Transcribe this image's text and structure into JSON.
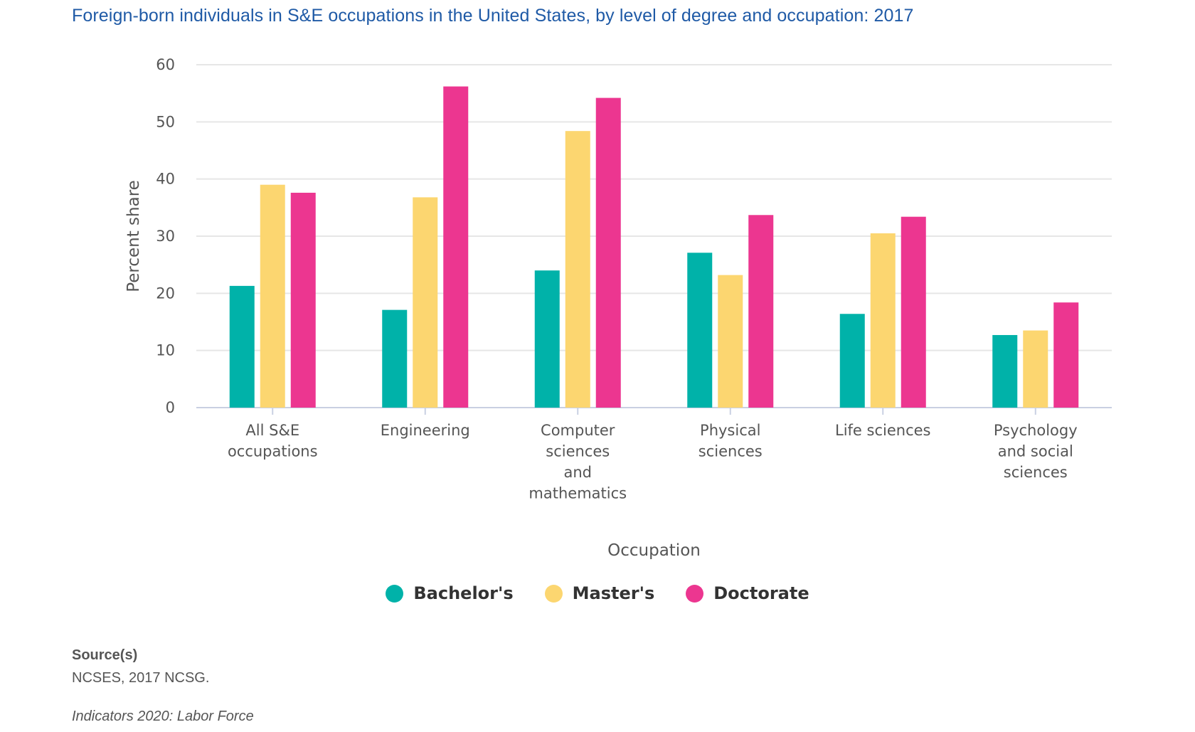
{
  "title": "Foreign-born individuals in S&E occupations in the United States, by level of degree and occupation: 2017",
  "chart_data": {
    "type": "bar",
    "title": "Foreign-born individuals in S&E occupations in the United States, by level of degree and occupation: 2017",
    "xlabel": "Occupation",
    "ylabel": "Percent share",
    "ylim": [
      0,
      60
    ],
    "yticks": [
      0,
      10,
      20,
      30,
      40,
      50,
      60
    ],
    "grid": true,
    "categories": [
      [
        "All S&E",
        "occupations"
      ],
      [
        "Engineering"
      ],
      [
        "Computer",
        "sciences",
        "and",
        "mathematics"
      ],
      [
        "Physical",
        "sciences"
      ],
      [
        "Life sciences"
      ],
      [
        "Psychology",
        "and social",
        "sciences"
      ]
    ],
    "series": [
      {
        "name": "Bachelor's",
        "color": "#00b2a9",
        "values": [
          21.3,
          17.1,
          24.0,
          27.1,
          16.4,
          12.7
        ]
      },
      {
        "name": "Master's",
        "color": "#fcd670",
        "values": [
          39.0,
          36.8,
          48.4,
          23.2,
          30.5,
          13.5
        ]
      },
      {
        "name": "Doctorate",
        "color": "#ec3690",
        "values": [
          37.6,
          56.2,
          54.2,
          33.7,
          33.4,
          18.4
        ]
      }
    ],
    "legend": "bottom-center"
  },
  "source": {
    "heading": "Source(s)",
    "text": "NCSES, 2017 NCSG."
  },
  "footer": "Indicators 2020: Labor Force"
}
